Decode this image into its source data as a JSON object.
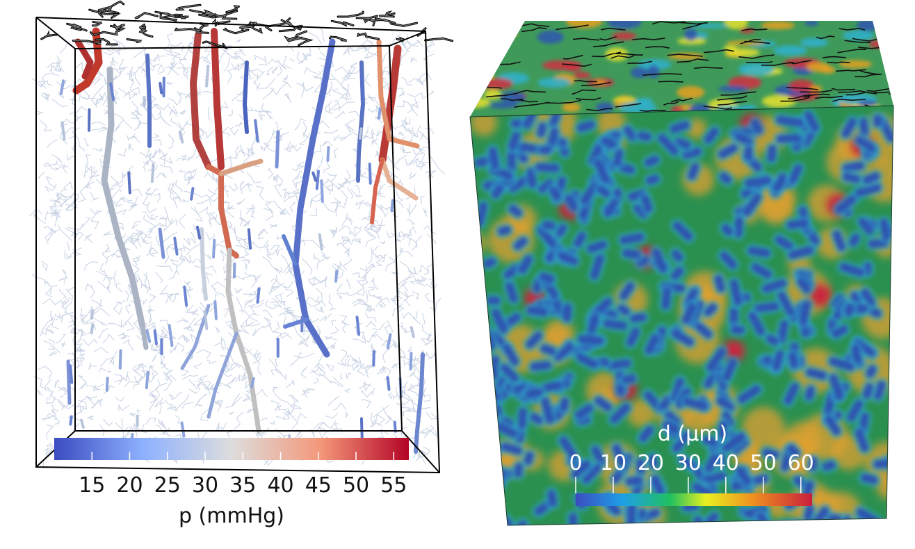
{
  "left_colorbar": {
    "title": "p (mmHg)",
    "ticks": [
      "15",
      "20",
      "25",
      "30",
      "35",
      "40",
      "45",
      "50",
      "55"
    ],
    "range": [
      10,
      57
    ],
    "colors": [
      "#3b4cc0",
      "#8db0fe",
      "#dddddd",
      "#f4987a",
      "#b40426"
    ]
  },
  "right_colorbar": {
    "title": "d (µm)",
    "ticks": [
      "0",
      "10",
      "20",
      "30",
      "40",
      "50",
      "60"
    ],
    "range": [
      0,
      63
    ],
    "colors": [
      "#3b4cc0",
      "#1ea0e6",
      "#20c060",
      "#e8f020",
      "#f09020",
      "#c81e3c"
    ]
  },
  "left_view": {
    "background": "#ffffff",
    "network_color": "#9fb0d0",
    "box_color": "#000000"
  },
  "right_view": {
    "background": "#2a9050",
    "vessel_color": "#2f55b0",
    "hotspot_color": "#c8283c"
  }
}
